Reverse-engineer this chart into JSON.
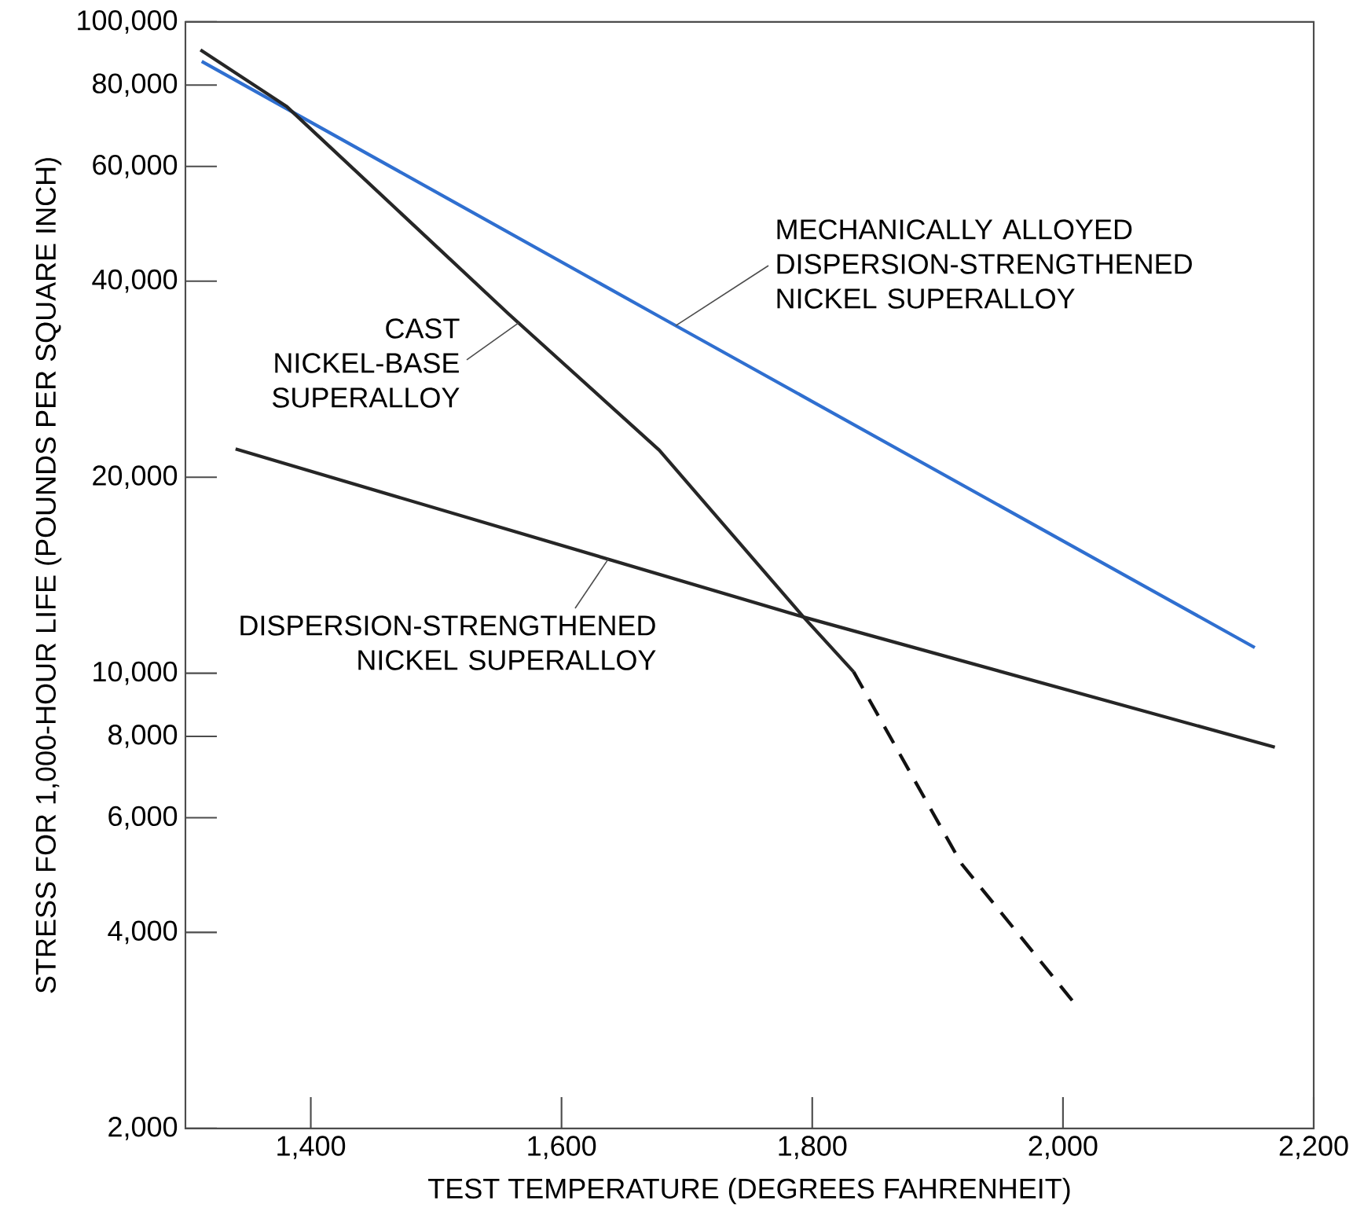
{
  "chart_data": {
    "type": "line",
    "xlabel": "TEST TEMPERATURE (DEGREES FAHRENHEIT)",
    "ylabel": "STRESS FOR 1,000-HOUR LIFE (POUNDS PER SQUARE INCH)",
    "log": "y",
    "xlim": [
      1300,
      2200
    ],
    "ylim": [
      2000,
      100000
    ],
    "xticks": [
      {
        "value": 1400,
        "label": "1,400"
      },
      {
        "value": 1600,
        "label": "1,600"
      },
      {
        "value": 1800,
        "label": "1,800"
      },
      {
        "value": 2000,
        "label": "2,000"
      },
      {
        "value": 2200,
        "label": "2,200"
      }
    ],
    "yticks": [
      {
        "value": 2000,
        "label": "2,000"
      },
      {
        "value": 4000,
        "label": "4,000"
      },
      {
        "value": 6000,
        "label": "6,000"
      },
      {
        "value": 8000,
        "label": "8,000"
      },
      {
        "value": 10000,
        "label": "10,000"
      },
      {
        "value": 20000,
        "label": "20,000"
      },
      {
        "value": 40000,
        "label": "40,000"
      },
      {
        "value": 60000,
        "label": "60,000"
      },
      {
        "value": 80000,
        "label": "80,000"
      },
      {
        "value": 100000,
        "label": "100,000"
      }
    ],
    "series": [
      {
        "name": "MECHANICALLY ALLOYED DISPERSION-STRENGTHENED NICKEL SUPERALLOY",
        "color": "#2f6fd0",
        "x": [
          1313,
          1678,
          2153
        ],
        "values": [
          87000,
          35300,
          10950
        ]
      },
      {
        "name": "CAST NICKEL-BASE SUPERALLOY",
        "color": "#262626",
        "x": [
          1312,
          1381,
          1558,
          1678,
          1793,
          1833
        ],
        "values": [
          90600,
          74100,
          35600,
          22000,
          12200,
          10050
        ]
      },
      {
        "color": "#111111",
        "line_style": "dashed",
        "x": [
          1833,
          1919,
          2010
        ],
        "values": [
          10050,
          5100,
          3100
        ]
      },
      {
        "name": "DISPERSION-STRENGTHENED NICKEL SUPERALLOY",
        "color": "#262626",
        "x": [
          1340,
          1793,
          2169
        ],
        "values": [
          22100,
          12200,
          7700
        ]
      }
    ]
  }
}
